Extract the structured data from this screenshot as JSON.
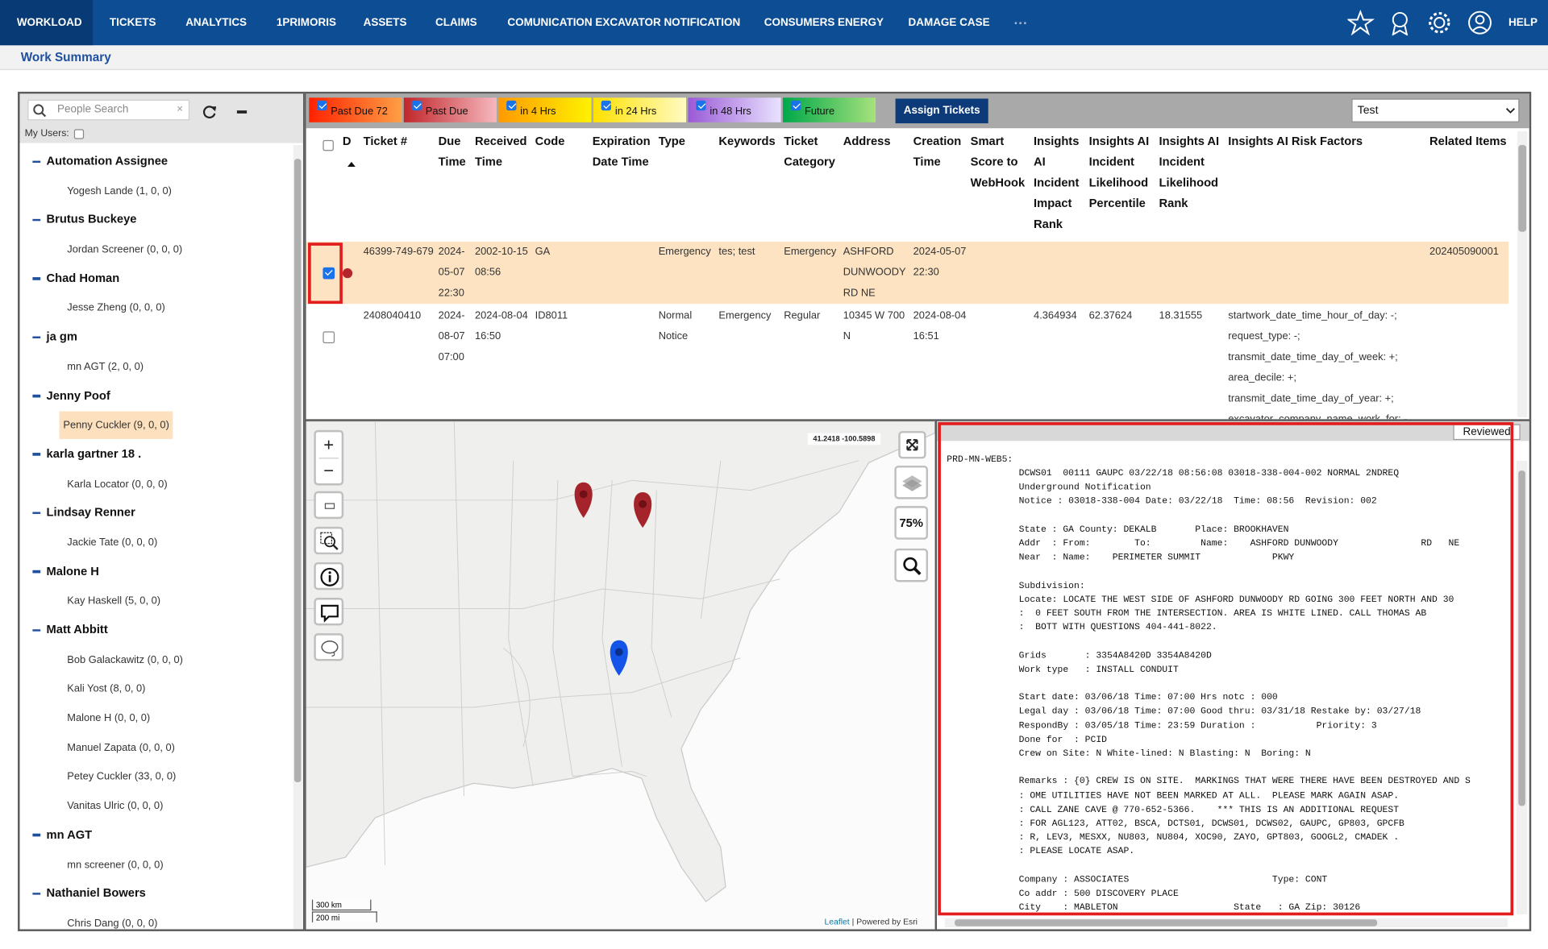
{
  "nav": {
    "items": [
      "WORKLOAD",
      "TICKETS",
      "ANALYTICS",
      "1PRIMORIS",
      "ASSETS",
      "CLAIMS",
      "COMUNICATION EXCAVATOR NOTIFICATION",
      "CONSUMERS ENERGY",
      "DAMAGE CASE"
    ],
    "more": "···",
    "help": "HELP"
  },
  "page_title": "Work Summary",
  "people": {
    "search_placeholder": "People Search",
    "my_users": "My Users:",
    "groups": [
      {
        "name": "Automation Assignee",
        "members": [
          "Yogesh Lande (1, 0, 0)"
        ]
      },
      {
        "name": "Brutus Buckeye",
        "members": [
          "Jordan Screener (0, 0, 0)"
        ]
      },
      {
        "name": "Chad Homan",
        "members": [
          "Jesse Zheng (0, 0, 0)"
        ]
      },
      {
        "name": "ja gm",
        "members": [
          "mn AGT (2, 0, 0)"
        ]
      },
      {
        "name": "Jenny Poof",
        "members": [
          "Penny Cuckler (9, 0, 0)"
        ],
        "selected_member": 0
      },
      {
        "name": "karla gartner 18 .",
        "members": [
          "Karla Locator (0, 0, 0)"
        ]
      },
      {
        "name": "Lindsay Renner",
        "members": [
          "Jackie Tate (0, 0, 0)"
        ]
      },
      {
        "name": "Malone H",
        "members": [
          "Kay Haskell (5, 0, 0)"
        ]
      },
      {
        "name": "Matt Abbitt",
        "members": [
          "Bob Galackawitz (0, 0, 0)",
          "Kali Yost (8, 0, 0)",
          "Malone H (0, 0, 0)",
          "Manuel Zapata (0, 0, 0)",
          "Petey Cuckler (33, 0, 0)",
          "Vanitas Ulric (0, 0, 0)"
        ]
      },
      {
        "name": "mn AGT",
        "members": [
          "mn screener (0, 0, 0)"
        ]
      },
      {
        "name": "Nathaniel Bowers",
        "members": [
          "Chris Dang (0, 0, 0)"
        ]
      }
    ]
  },
  "filters": [
    {
      "label": "Past Due 72",
      "checked": true,
      "colors": [
        "#ff2200",
        "#ff9f45"
      ]
    },
    {
      "label": "Past Due",
      "checked": true,
      "colors": [
        "#c0262b",
        "#f6b8be"
      ]
    },
    {
      "label": "in 4 Hrs",
      "checked": true,
      "colors": [
        "#ff9a00",
        "#fff200"
      ]
    },
    {
      "label": "in 24 Hrs",
      "checked": true,
      "colors": [
        "#ffe100",
        "#fffbc2"
      ]
    },
    {
      "label": "in 48 Hrs",
      "checked": true,
      "colors": [
        "#9a5ad6",
        "#e9e2ff"
      ]
    },
    {
      "label": "Future",
      "checked": true,
      "colors": [
        "#00a84a",
        "#a6e27c"
      ]
    }
  ],
  "assign_button": "Assign Tickets",
  "view_select": "Test",
  "table": {
    "columns": [
      "D",
      "Ticket #",
      "Due Time",
      "Received Time",
      "Code",
      "Expiration Date Time",
      "Type",
      "Keywords",
      "Ticket Category",
      "Address",
      "Creation Time",
      "Smart Score to WebHook",
      "Insights AI Incident Impact Rank",
      "Insights AI Incident Likelihood Percentile",
      "Insights AI Incident Likelihood Rank",
      "Insights AI Risk Factors",
      "Related Items"
    ],
    "rows": [
      {
        "checked": true,
        "status_color": "#b3262b",
        "cells": [
          "46399-749-679",
          "2024-05-07 22:30",
          "2002-10-15 08:56",
          "GA",
          null,
          "Emergency",
          "tes; test",
          "Emergency",
          "ASHFORD DUNWOODY RD NE",
          "2024-05-07 22:30",
          null,
          null,
          null,
          null,
          null,
          "202405090001"
        ]
      },
      {
        "checked": false,
        "cells": [
          "2408040410",
          "2024-08-07 07:00",
          "2024-08-04 16:50",
          "ID8011",
          null,
          "Normal Notice",
          "Emergency",
          "Regular",
          "10345 W 700 N",
          "2024-08-04 16:51",
          null,
          "4.364934",
          "62.37624",
          "18.31555",
          [
            "startwork_date_time_hour_of_day: -;",
            "request_type: -;",
            "transmit_date_time_day_of_week: +;",
            "area_decile: +;",
            "transmit_date_time_day_of_year: +;",
            "excavator_company_name_work_for: -"
          ],
          null
        ]
      }
    ]
  },
  "map": {
    "coordinates": "41.2418 -100.5898",
    "zoom_label": "75%",
    "scale": [
      "300 km",
      "200 mi"
    ],
    "attribution_link": "Leaflet",
    "attribution_text": "| Powered by Esri"
  },
  "ticket": {
    "button": "Reviewed",
    "source": "PRD-MN-WEB5:",
    "blocks": [
      [
        "DCWS01  00111 GAUPC 03/22/18 08:56:08 03018-338-004-002 NORMAL 2NDREQ",
        "Underground Notification",
        "Notice : 03018-338-004 Date: 03/22/18  Time: 08:56  Revision: 002"
      ],
      [
        "State : GA County: DEKALB       Place: BROOKHAVEN",
        "Addr  : From:        To:         Name:    ASHFORD DUNWOODY               RD   NE",
        "Near  : Name:    PERIMETER SUMMIT             PKWY"
      ],
      [
        "Subdivision:",
        "Locate: LOCATE THE WEST SIDE OF ASHFORD DUNWOODY RD GOING 300 FEET NORTH AND 30",
        ":  0 FEET SOUTH FROM THE INTERSECTION. AREA IS WHITE LINED. CALL THOMAS AB",
        ":  BOTT WITH QUESTIONS 404-441-8022."
      ],
      [
        "Grids       : 3354A8420D 3354A8420D",
        "Work type   : INSTALL CONDUIT"
      ],
      [
        "Start date: 03/06/18 Time: 07:00 Hrs notc : 000",
        "Legal day : 03/06/18 Time: 07:00 Good thru: 03/31/18 Restake by: 03/27/18",
        "RespondBy : 03/05/18 Time: 23:59 Duration :           Priority: 3",
        "Done for  : PCID",
        "Crew on Site: N White-lined: N Blasting: N  Boring: N"
      ],
      [
        "Remarks : {0} CREW IS ON SITE.  MARKINGS THAT WERE THERE HAVE BEEN DESTROYED AND S",
        ": OME UTILITIES HAVE NOT BEEN MARKED AT ALL.  PLEASE MARK AGAIN ASAP.",
        ": CALL ZANE CAVE @ 770-652-5366.    *** THIS IS AN ADDITIONAL REQUEST",
        ": FOR AGL123, ATT02, BSCA, DCTS01, DCWS01, DCWS02, GAUPC, GP803, GPCFB",
        ": R, LEV3, MESXX, NU803, NU804, XOC90, ZAYO, GPT803, GOOGL2, CMADEK .",
        ": PLEASE LOCATE ASAP."
      ],
      [
        "Company : ASSOCIATES                          Type: CONT",
        "Co addr : 500 DISCOVERY PLACE",
        "City    : MABLETON                     State   : GA Zip: 30126"
      ]
    ]
  }
}
